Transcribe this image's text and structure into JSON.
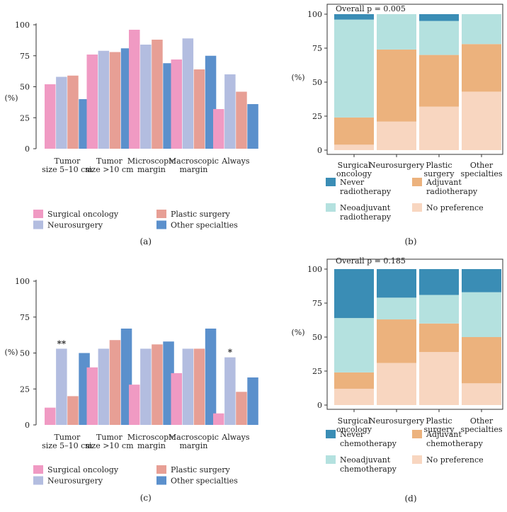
{
  "colors": {
    "surgical_oncology": "#f09ac3",
    "neurosurgery": "#b3bde0",
    "plastic_surgery": "#e79f95",
    "other_specialties": "#5b90cc",
    "never": "#3a8db5",
    "neoadjuvant": "#b4e1df",
    "adjuvant": "#ecb27d",
    "no_preference": "#f8d6c0",
    "axis": "#333333"
  },
  "chart_data": [
    {
      "panel": "a",
      "type": "bar",
      "panel_label": "(a)",
      "ylabel": "(%)",
      "ylim": [
        0,
        100
      ],
      "yticks": [
        0,
        25,
        50,
        75,
        100
      ],
      "categories": [
        [
          "Tumor",
          "size 5–10 cm"
        ],
        [
          "Tumor",
          "size >10 cm"
        ],
        [
          "Microscopic",
          "margin"
        ],
        [
          "Macroscopic",
          "margin"
        ],
        [
          "Always"
        ]
      ],
      "series": [
        {
          "name": "Surgical oncology",
          "color_key": "surgical_oncology",
          "values": [
            52,
            76,
            96,
            72,
            32
          ]
        },
        {
          "name": "Neurosurgery",
          "color_key": "neurosurgery",
          "values": [
            58,
            79,
            84,
            89,
            60
          ]
        },
        {
          "name": "Plastic surgery",
          "color_key": "plastic_surgery",
          "values": [
            59,
            78,
            88,
            64,
            46
          ]
        },
        {
          "name": "Other specialties",
          "color_key": "other_specialties",
          "values": [
            40,
            81,
            69,
            75,
            36
          ]
        }
      ],
      "annotations": []
    },
    {
      "panel": "b",
      "type": "stacked-bar",
      "panel_label": "(b)",
      "title": "Overall p = 0.005",
      "ylabel": "(%)",
      "ylim": [
        0,
        100
      ],
      "yticks": [
        0,
        25,
        50,
        75,
        100
      ],
      "categories": [
        [
          "Surgical",
          "oncology"
        ],
        [
          "Neurosurgery"
        ],
        [
          "Plastic",
          "surgery"
        ],
        [
          "Other",
          "specialties"
        ]
      ],
      "series": [
        {
          "name": "No preference",
          "color_key": "no_preference",
          "values": [
            4,
            21,
            32,
            43
          ]
        },
        {
          "name": "Adjuvant radiotherapy",
          "color_key": "adjuvant",
          "values": [
            20,
            53,
            38,
            35
          ]
        },
        {
          "name": "Neoadjuvant radiotherapy",
          "color_key": "neoadjuvant",
          "values": [
            72,
            26,
            25,
            22
          ]
        },
        {
          "name": "Never radiotherapy",
          "color_key": "never",
          "values": [
            4,
            0,
            5,
            0
          ]
        }
      ],
      "legend": [
        {
          "label": [
            "Never",
            "radiotherapy"
          ],
          "color_key": "never"
        },
        {
          "label": [
            "Adjuvant",
            "radiotherapy"
          ],
          "color_key": "adjuvant"
        },
        {
          "label": [
            "Neoadjuvant",
            "radiotherapy"
          ],
          "color_key": "neoadjuvant"
        },
        {
          "label": [
            "No preference"
          ],
          "color_key": "no_preference"
        }
      ]
    },
    {
      "panel": "c",
      "type": "bar",
      "panel_label": "(c)",
      "ylabel": "(%)",
      "ylim": [
        0,
        100
      ],
      "yticks": [
        0,
        25,
        50,
        75,
        100
      ],
      "categories": [
        [
          "Tumor",
          "size 5–10 cm"
        ],
        [
          "Tumor",
          "size >10 cm"
        ],
        [
          "Microscopic",
          "margin"
        ],
        [
          "Macroscopic",
          "margin"
        ],
        [
          "Always"
        ]
      ],
      "series": [
        {
          "name": "Surgical oncology",
          "color_key": "surgical_oncology",
          "values": [
            12,
            40,
            28,
            36,
            8
          ]
        },
        {
          "name": "Neurosurgery",
          "color_key": "neurosurgery",
          "values": [
            53,
            53,
            53,
            53,
            47
          ]
        },
        {
          "name": "Plastic surgery",
          "color_key": "plastic_surgery",
          "values": [
            20,
            59,
            56,
            53,
            23
          ]
        },
        {
          "name": "Other specialties",
          "color_key": "other_specialties",
          "values": [
            50,
            67,
            58,
            67,
            33
          ]
        }
      ],
      "annotations": [
        {
          "category": 0,
          "series": 1,
          "text": "**"
        },
        {
          "category": 4,
          "series": 1,
          "text": "*"
        }
      ]
    },
    {
      "panel": "d",
      "type": "stacked-bar",
      "panel_label": "(d)",
      "title": "Overall p = 0.185",
      "ylabel": "(%)",
      "ylim": [
        0,
        100
      ],
      "yticks": [
        0,
        25,
        50,
        75,
        100
      ],
      "categories": [
        [
          "Surgical",
          "oncology"
        ],
        [
          "Neurosurgery"
        ],
        [
          "Plastic",
          "surgery"
        ],
        [
          "Other",
          "specialties"
        ]
      ],
      "series": [
        {
          "name": "No preference",
          "color_key": "no_preference",
          "values": [
            12,
            31,
            39,
            16
          ]
        },
        {
          "name": "Adjuvant chemotherapy",
          "color_key": "adjuvant",
          "values": [
            12,
            32,
            21,
            34
          ]
        },
        {
          "name": "Neoadjuvant chemotherapy",
          "color_key": "neoadjuvant",
          "values": [
            40,
            16,
            21,
            33
          ]
        },
        {
          "name": "Never chemotherapy",
          "color_key": "never",
          "values": [
            36,
            21,
            19,
            17
          ]
        }
      ],
      "legend": [
        {
          "label": [
            "Never",
            "chemotherapy"
          ],
          "color_key": "never"
        },
        {
          "label": [
            "Adjuvant",
            "chemotherapy"
          ],
          "color_key": "adjuvant"
        },
        {
          "label": [
            "Neoadjuvant",
            "chemotherapy"
          ],
          "color_key": "neoadjuvant"
        },
        {
          "label": [
            "No preference"
          ],
          "color_key": "no_preference"
        }
      ]
    }
  ]
}
